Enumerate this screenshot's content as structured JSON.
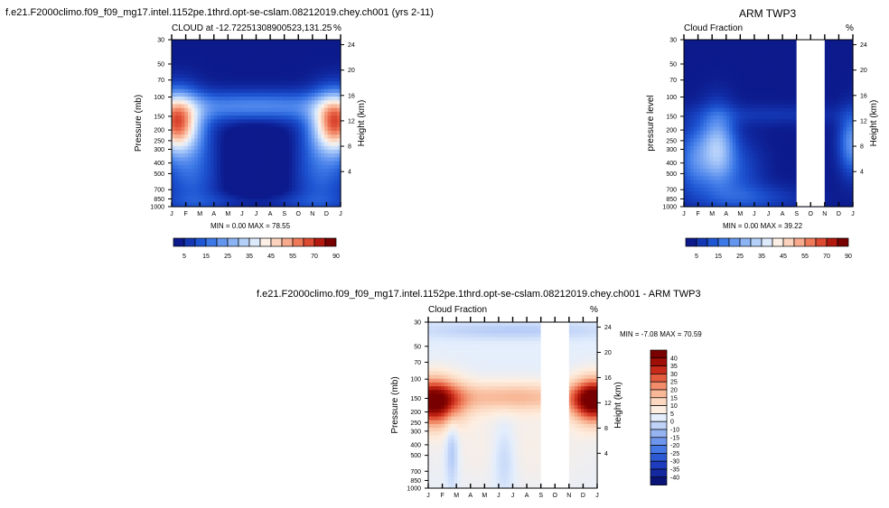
{
  "header": {
    "left_title": "f.e21.F2000climo.f09_f09_mg17.intel.1152pe.1thrd.opt-se-cslam.08212019.chey.ch001 (yrs 2-11)",
    "right_title": "ARM TWP3",
    "diff_title": "f.e21.F2000climo.f09_f09_mg17.intel.1152pe.1thrd.opt-se-cslam.08212019.chey.ch001 - ARM TWP3"
  },
  "colors": {
    "seq_scale": [
      "#0c1a8c",
      "#1437b4",
      "#1e55d2",
      "#3c78e6",
      "#6496f0",
      "#8cb4f5",
      "#b4d0fa",
      "#dceafc",
      "#fcefe5",
      "#fbd2bc",
      "#f7aa8c",
      "#ef7a5a",
      "#dc4a32",
      "#b4190f",
      "#780000"
    ],
    "div_scale": [
      "#0a1478",
      "#1428a0",
      "#1e3cbe",
      "#2d5ad2",
      "#4678e6",
      "#6e96ec",
      "#96b4f2",
      "#bed2f8",
      "#e4eefc",
      "#fdeee1",
      "#fcd8c0",
      "#f8b898",
      "#f28c6a",
      "#e45c3e",
      "#c82a1a",
      "#a00f06",
      "#780000"
    ]
  },
  "chart_data": [
    {
      "id": "model",
      "type": "heatmap",
      "title": "CLOUD at -12.72251308900523,131.25",
      "left_corner": "",
      "right_corner": "%",
      "x_categories": [
        "J",
        "F",
        "M",
        "A",
        "M",
        "J",
        "J",
        "A",
        "S",
        "O",
        "N",
        "D",
        "J"
      ],
      "ylabel": "Pressure (mb)",
      "y_ticks": [
        "30",
        "50",
        "70",
        "100",
        "150",
        "200",
        "250",
        "300",
        "400",
        "500",
        "700",
        "850",
        "1000"
      ],
      "y2label": "Height (km)",
      "y2_ticks": [
        "24",
        "20",
        "16",
        "12",
        "8",
        "4"
      ],
      "ylim": [
        1000,
        30
      ],
      "stats": "MIN =   0.00 MAX =  78.55",
      "colorbar_labels": [
        "5",
        "15",
        "25",
        "35",
        "45",
        "55",
        "70",
        "90"
      ]
    },
    {
      "id": "obs",
      "type": "heatmap",
      "title": "Cloud Fraction",
      "right_corner": "%",
      "x_categories": [
        "J",
        "F",
        "M",
        "A",
        "M",
        "J",
        "J",
        "A",
        "S",
        "O",
        "N",
        "D",
        "J"
      ],
      "ylabel": "pressure level",
      "y_ticks": [
        "30",
        "50",
        "70",
        "100",
        "150",
        "200",
        "250",
        "300",
        "400",
        "500",
        "700",
        "850",
        "1000"
      ],
      "y2label": "Height (km)",
      "y2_ticks": [
        "24",
        "20",
        "16",
        "12",
        "8",
        "4"
      ],
      "ylim": [
        1000,
        30
      ],
      "missing_months": [
        "S",
        "O",
        "N"
      ],
      "stats": "MIN =   0.00 MAX =  39.22",
      "colorbar_labels": [
        "5",
        "15",
        "25",
        "35",
        "45",
        "55",
        "70",
        "90"
      ]
    },
    {
      "id": "diff",
      "type": "heatmap",
      "title": "Cloud Fraction",
      "right_corner": "%",
      "x_categories": [
        "J",
        "F",
        "M",
        "A",
        "M",
        "J",
        "J",
        "A",
        "S",
        "O",
        "N",
        "D",
        "J"
      ],
      "ylabel": "Pressure (mb)",
      "y_ticks": [
        "30",
        "50",
        "70",
        "100",
        "150",
        "200",
        "250",
        "300",
        "400",
        "500",
        "700",
        "850",
        "1000"
      ],
      "y2label": "Height (km)",
      "y2_ticks": [
        "24",
        "20",
        "16",
        "12",
        "8",
        "4"
      ],
      "ylim": [
        1000,
        30
      ],
      "missing_months": [
        "S",
        "O",
        "N"
      ],
      "stats": "MIN =  -7.08 MAX =  70.59",
      "colorbar_labels": [
        "40",
        "35",
        "30",
        "25",
        "20",
        "15",
        "10",
        "5",
        "0",
        "-10",
        "-15",
        "-20",
        "-25",
        "-30",
        "-35",
        "-40"
      ]
    }
  ]
}
